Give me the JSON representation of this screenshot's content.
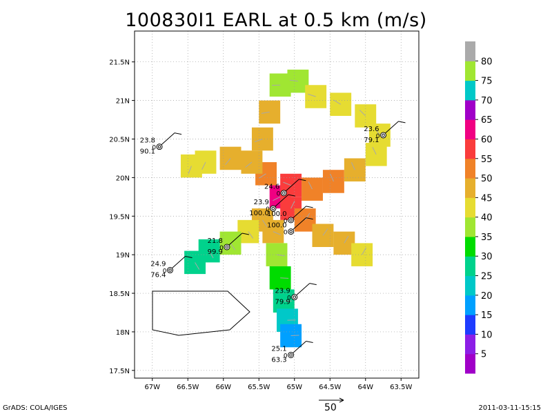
{
  "chart_data": {
    "type": "heatmap",
    "title": "100830I1 EARL at 0.5 km (m/s)",
    "xlabel": "",
    "ylabel": "",
    "x_ticks": [
      "67W",
      "66.5W",
      "66W",
      "65.5W",
      "65W",
      "64.5W",
      "64W",
      "63.5W"
    ],
    "x_tick_values": [
      -67,
      -66.5,
      -66,
      -65.5,
      -65,
      -64.5,
      -64,
      -63.5
    ],
    "y_ticks": [
      "17.5N",
      "18N",
      "18.5N",
      "19N",
      "19.5N",
      "20N",
      "20.5N",
      "21N",
      "21.5N"
    ],
    "y_tick_values": [
      17.5,
      18,
      18.5,
      19,
      19.5,
      20,
      20.5,
      21,
      21.5
    ],
    "xlim": [
      -67.25,
      -63.25
    ],
    "ylim": [
      17.4,
      21.9
    ],
    "grid": true,
    "colorbar": {
      "labels": [
        "5",
        "10",
        "15",
        "20",
        "25",
        "30",
        "35",
        "40",
        "45",
        "50",
        "55",
        "60",
        "65",
        "70",
        "75",
        "80"
      ],
      "colors": [
        "#a000c8",
        "#8c1ee6",
        "#1e3cff",
        "#00a0ff",
        "#00c8c8",
        "#00d28c",
        "#00dc00",
        "#a0e632",
        "#e6dc32",
        "#e6af2d",
        "#f08228",
        "#fa3c3c",
        "#f00082",
        "#a000c8",
        "#00c8c8",
        "#a0e632",
        "#aaaaaa"
      ]
    },
    "cells": [
      {
        "lon": -65.2,
        "lat": 19.75,
        "speed": 62
      },
      {
        "lon": -65.05,
        "lat": 19.6,
        "speed": 58
      },
      {
        "lon": -65.05,
        "lat": 19.9,
        "speed": 55
      },
      {
        "lon": -64.75,
        "lat": 19.85,
        "speed": 52
      },
      {
        "lon": -64.45,
        "lat": 19.95,
        "speed": 52
      },
      {
        "lon": -64.15,
        "lat": 20.1,
        "speed": 48
      },
      {
        "lon": -63.85,
        "lat": 20.3,
        "speed": 42
      },
      {
        "lon": -65.4,
        "lat": 20.05,
        "speed": 50
      },
      {
        "lon": -65.6,
        "lat": 20.2,
        "speed": 48
      },
      {
        "lon": -65.9,
        "lat": 20.25,
        "speed": 45
      },
      {
        "lon": -66.25,
        "lat": 20.2,
        "speed": 40
      },
      {
        "lon": -66.45,
        "lat": 20.15,
        "speed": 40
      },
      {
        "lon": -65.45,
        "lat": 20.5,
        "speed": 45
      },
      {
        "lon": -65.35,
        "lat": 20.85,
        "speed": 45
      },
      {
        "lon": -65.2,
        "lat": 21.2,
        "speed": 38
      },
      {
        "lon": -64.95,
        "lat": 21.25,
        "speed": 35
      },
      {
        "lon": -64.7,
        "lat": 21.05,
        "speed": 40
      },
      {
        "lon": -64.35,
        "lat": 20.95,
        "speed": 40
      },
      {
        "lon": -64.0,
        "lat": 20.8,
        "speed": 40
      },
      {
        "lon": -63.8,
        "lat": 20.55,
        "speed": 40
      },
      {
        "lon": -65.45,
        "lat": 19.45,
        "speed": 48
      },
      {
        "lon": -65.65,
        "lat": 19.3,
        "speed": 40
      },
      {
        "lon": -65.9,
        "lat": 19.15,
        "speed": 35
      },
      {
        "lon": -66.2,
        "lat": 19.05,
        "speed": 28
      },
      {
        "lon": -66.4,
        "lat": 18.9,
        "speed": 26
      },
      {
        "lon": -65.3,
        "lat": 19.3,
        "speed": 45
      },
      {
        "lon": -65.25,
        "lat": 19.0,
        "speed": 38
      },
      {
        "lon": -65.2,
        "lat": 18.7,
        "speed": 32
      },
      {
        "lon": -65.15,
        "lat": 18.4,
        "speed": 28
      },
      {
        "lon": -65.1,
        "lat": 18.15,
        "speed": 22
      },
      {
        "lon": -65.05,
        "lat": 17.95,
        "speed": 18
      },
      {
        "lon": -64.85,
        "lat": 19.45,
        "speed": 50
      },
      {
        "lon": -64.6,
        "lat": 19.25,
        "speed": 45
      },
      {
        "lon": -64.3,
        "lat": 19.15,
        "speed": 45
      },
      {
        "lon": -64.05,
        "lat": 19.0,
        "speed": 42
      }
    ],
    "stations": [
      {
        "lon": -66.9,
        "lat": 20.4,
        "labels": [
          "23.8",
          "90.1"
        ]
      },
      {
        "lon": -63.75,
        "lat": 20.55,
        "labels": [
          "23.6",
          "79.1"
        ]
      },
      {
        "lon": -65.15,
        "lat": 19.8,
        "labels": [
          "24.6"
        ]
      },
      {
        "lon": -65.3,
        "lat": 19.6,
        "labels": [
          "23.9",
          "100.0"
        ]
      },
      {
        "lon": -65.05,
        "lat": 19.45,
        "labels": [
          "100.0"
        ]
      },
      {
        "lon": -65.05,
        "lat": 19.3,
        "labels": [
          "100.0"
        ]
      },
      {
        "lon": -65.95,
        "lat": 19.1,
        "labels": [
          "21.8",
          "99.9"
        ]
      },
      {
        "lon": -66.75,
        "lat": 18.8,
        "labels": [
          "24.9",
          "76.4"
        ]
      },
      {
        "lon": -65.0,
        "lat": 18.45,
        "labels": [
          "23.9",
          "79.9"
        ]
      },
      {
        "lon": -65.05,
        "lat": 17.7,
        "labels": [
          "25.1",
          "63.3"
        ]
      }
    ],
    "reference_vector": "50"
  },
  "footer": {
    "credit": "GrADS: COLA/IGES",
    "timestamp": "2011-03-11-15:15"
  }
}
